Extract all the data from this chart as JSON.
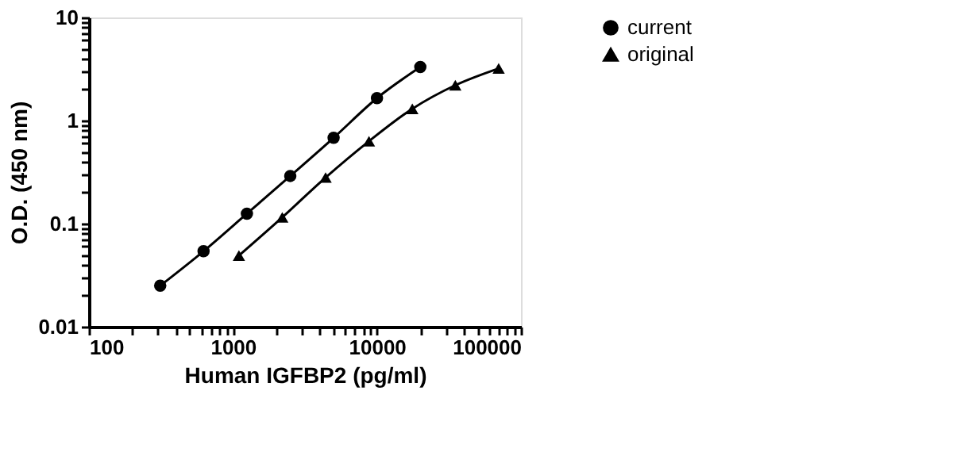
{
  "chart_data": {
    "type": "line",
    "xlabel": "Human IGFBP2 (pg/ml)",
    "ylabel": "O.D. (450 nm)",
    "log": "xy",
    "grid": false,
    "legend": "right",
    "line_style": "solid",
    "xlim": [
      100,
      100000
    ],
    "ylim": [
      0.01,
      10
    ],
    "xticks": [
      100,
      {
        "value": 200,
        "label": null
      },
      {
        "value": 300,
        "label": null
      },
      {
        "value": 400,
        "label": null
      },
      {
        "value": 500,
        "label": null
      },
      {
        "value": 600,
        "label": null
      },
      {
        "value": 700,
        "label": null
      },
      {
        "value": 800,
        "label": null
      },
      {
        "value": 900,
        "label": null
      },
      1000,
      {
        "value": 2000,
        "label": null
      },
      {
        "value": 3000,
        "label": null
      },
      {
        "value": 4000,
        "label": null
      },
      {
        "value": 5000,
        "label": null
      },
      {
        "value": 6000,
        "label": null
      },
      {
        "value": 7000,
        "label": null
      },
      {
        "value": 8000,
        "label": null
      },
      {
        "value": 9000,
        "label": null
      },
      10000,
      {
        "value": 20000,
        "label": null
      },
      {
        "value": 30000,
        "label": null
      },
      {
        "value": 40000,
        "label": null
      },
      {
        "value": 50000,
        "label": null
      },
      {
        "value": 60000,
        "label": null
      },
      {
        "value": 70000,
        "label": null
      },
      {
        "value": 80000,
        "label": null
      },
      {
        "value": 90000,
        "label": null
      },
      100000
    ],
    "yticks": [
      0.01,
      {
        "value": 0.02,
        "label": null
      },
      {
        "value": 0.03,
        "label": null
      },
      {
        "value": 0.04,
        "label": null
      },
      {
        "value": 0.05,
        "label": null
      },
      {
        "value": 0.06,
        "label": null
      },
      {
        "value": 0.07,
        "label": null
      },
      {
        "value": 0.08,
        "label": null
      },
      {
        "value": 0.09,
        "label": null
      },
      0.1,
      {
        "value": 0.2,
        "label": null
      },
      {
        "value": 0.3,
        "label": null
      },
      {
        "value": 0.4,
        "label": null
      },
      {
        "value": 0.5,
        "label": null
      },
      {
        "value": 0.6,
        "label": null
      },
      {
        "value": 0.7,
        "label": null
      },
      {
        "value": 0.8,
        "label": null
      },
      {
        "value": 0.9,
        "label": null
      },
      1,
      {
        "value": 2,
        "label": null
      },
      {
        "value": 3,
        "label": null
      },
      {
        "value": 4,
        "label": null
      },
      {
        "value": 5,
        "label": null
      },
      {
        "value": 6,
        "label": null
      },
      {
        "value": 7,
        "label": null
      },
      {
        "value": 8,
        "label": null
      },
      {
        "value": 9,
        "label": null
      },
      10
    ],
    "series": [
      {
        "name": "current",
        "color": "#000000",
        "marker": "circle",
        "x": [
          312.5,
          625,
          1250,
          2500,
          5000,
          10000,
          20000
        ],
        "values": [
          0.025,
          0.054,
          0.125,
          0.29,
          0.68,
          1.65,
          3.3
        ]
      },
      {
        "name": "original",
        "color": "#000000",
        "marker": "triangle",
        "x": [
          1100,
          2200,
          4400,
          8800,
          17600,
          35000,
          70000
        ],
        "values": [
          0.049,
          0.115,
          0.28,
          0.63,
          1.3,
          2.2,
          3.2
        ]
      }
    ]
  }
}
